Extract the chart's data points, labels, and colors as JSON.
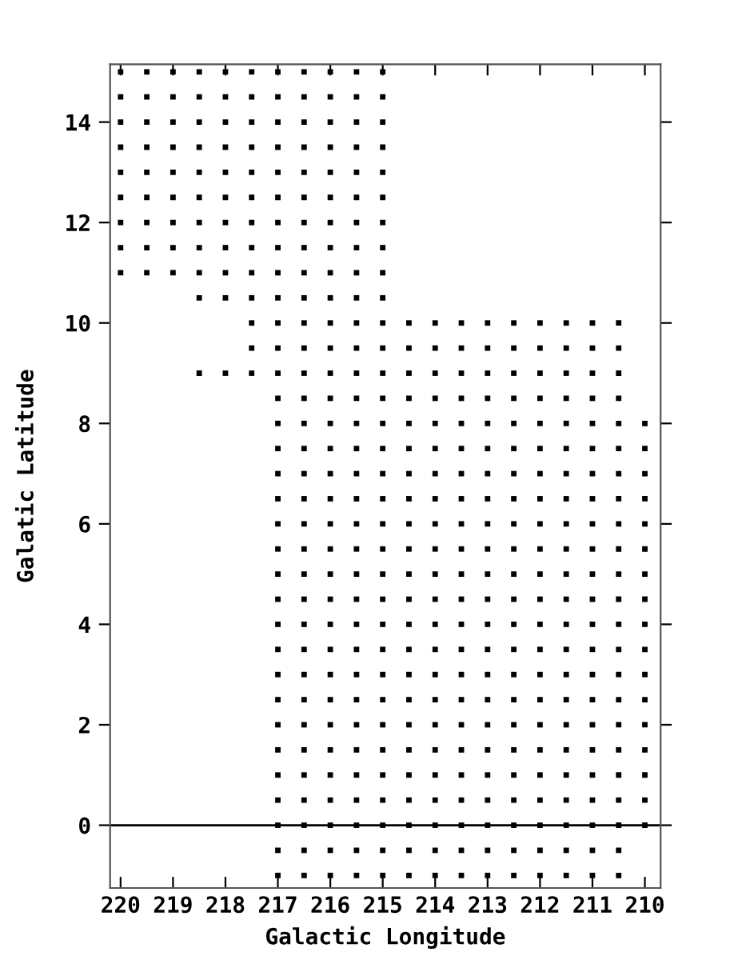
{
  "chart_data": {
    "type": "scatter",
    "xlabel": "Galactic Longitude",
    "ylabel": "Galatic Latitude",
    "xlim": [
      220.2,
      209.7
    ],
    "ylim": [
      -1.25,
      15.15
    ],
    "xticks": [
      220,
      219,
      218,
      217,
      216,
      215,
      214,
      213,
      212,
      211,
      210
    ],
    "yticks": [
      0,
      2,
      4,
      6,
      8,
      10,
      12,
      14
    ],
    "marker": "square",
    "grid": false,
    "ref_lines": [
      {
        "axis": "y",
        "value": 0,
        "color": "#000000"
      }
    ],
    "series": [
      {
        "color": "#000000",
        "x": [
          220,
          219.5,
          219,
          218.5,
          218,
          217.5,
          217,
          216.5,
          216,
          215.5,
          215
        ],
        "values": [
          15,
          15,
          15,
          15,
          15,
          15,
          15,
          15,
          15,
          15,
          15
        ]
      },
      {
        "color": "#000000",
        "x": [
          220,
          219.5,
          219,
          218.5,
          218,
          217.5,
          217,
          216.5,
          216,
          215.5,
          215
        ],
        "values": [
          14.5,
          14.5,
          14.5,
          14.5,
          14.5,
          14.5,
          14.5,
          14.5,
          14.5,
          14.5,
          14.5
        ]
      },
      {
        "color": "#000000",
        "x": [
          220,
          219.5,
          219,
          218.5,
          218,
          217.5,
          217,
          216.5,
          216,
          215.5,
          215
        ],
        "values": [
          14,
          14,
          14,
          14,
          14,
          14,
          14,
          14,
          14,
          14,
          14
        ]
      },
      {
        "color": "#000000",
        "x": [
          220,
          219.5,
          219,
          218.5,
          218,
          217.5,
          217,
          216.5,
          216,
          215.5,
          215
        ],
        "values": [
          13.5,
          13.5,
          13.5,
          13.5,
          13.5,
          13.5,
          13.5,
          13.5,
          13.5,
          13.5,
          13.5
        ]
      },
      {
        "color": "#000000",
        "x": [
          220,
          219.5,
          219,
          218.5,
          218,
          217.5,
          217,
          216.5,
          216,
          215.5,
          215
        ],
        "values": [
          13,
          13,
          13,
          13,
          13,
          13,
          13,
          13,
          13,
          13,
          13
        ]
      },
      {
        "color": "#000000",
        "x": [
          220,
          219.5,
          219,
          218.5,
          218,
          217.5,
          217,
          216.5,
          216,
          215.5,
          215
        ],
        "values": [
          12.5,
          12.5,
          12.5,
          12.5,
          12.5,
          12.5,
          12.5,
          12.5,
          12.5,
          12.5,
          12.5
        ]
      },
      {
        "color": "#000000",
        "x": [
          220,
          219.5,
          219,
          218.5,
          218,
          217.5,
          217,
          216.5,
          216,
          215.5,
          215
        ],
        "values": [
          12,
          12,
          12,
          12,
          12,
          12,
          12,
          12,
          12,
          12,
          12
        ]
      },
      {
        "color": "#000000",
        "x": [
          220,
          219.5,
          219,
          218.5,
          218,
          217.5,
          217,
          216.5,
          216,
          215.5,
          215
        ],
        "values": [
          11.5,
          11.5,
          11.5,
          11.5,
          11.5,
          11.5,
          11.5,
          11.5,
          11.5,
          11.5,
          11.5
        ]
      },
      {
        "color": "#000000",
        "x": [
          220,
          219.5,
          219,
          218.5,
          218,
          217.5,
          217,
          216.5,
          216,
          215.5,
          215
        ],
        "values": [
          11,
          11,
          11,
          11,
          11,
          11,
          11,
          11,
          11,
          11,
          11
        ]
      },
      {
        "color": "#000000",
        "x": [
          218.5,
          218,
          217.5,
          217,
          216.5,
          216,
          215.5,
          215
        ],
        "values": [
          10.5,
          10.5,
          10.5,
          10.5,
          10.5,
          10.5,
          10.5,
          10.5
        ]
      },
      {
        "color": "#000000",
        "x": [
          217.5,
          217,
          216.5,
          216,
          215.5,
          215,
          214.5,
          214,
          213.5,
          213,
          212.5,
          212,
          211.5,
          211,
          210.5
        ],
        "values": [
          10,
          10,
          10,
          10,
          10,
          10,
          10,
          10,
          10,
          10,
          10,
          10,
          10,
          10,
          10
        ]
      },
      {
        "color": "#000000",
        "x": [
          217.5,
          217,
          216.5,
          216,
          215.5,
          215,
          214.5,
          214,
          213.5,
          213,
          212.5,
          212,
          211.5,
          211,
          210.5
        ],
        "values": [
          9.5,
          9.5,
          9.5,
          9.5,
          9.5,
          9.5,
          9.5,
          9.5,
          9.5,
          9.5,
          9.5,
          9.5,
          9.5,
          9.5,
          9.5
        ]
      },
      {
        "color": "#000000",
        "x": [
          218.5,
          218,
          217.5,
          217,
          216.5,
          216,
          215.5,
          215,
          214.5,
          214,
          213.5,
          213,
          212.5,
          212,
          211.5,
          211,
          210.5
        ],
        "values": [
          9,
          9,
          9,
          9,
          9,
          9,
          9,
          9,
          9,
          9,
          9,
          9,
          9,
          9,
          9,
          9,
          9
        ]
      },
      {
        "color": "#000000",
        "x": [
          217,
          216.5,
          216,
          215.5,
          215,
          214.5,
          214,
          213.5,
          213,
          212.5,
          212,
          211.5,
          211,
          210.5
        ],
        "values": [
          8.5,
          8.5,
          8.5,
          8.5,
          8.5,
          8.5,
          8.5,
          8.5,
          8.5,
          8.5,
          8.5,
          8.5,
          8.5,
          8.5
        ]
      },
      {
        "color": "#000000",
        "x": [
          217,
          216.5,
          216,
          215.5,
          215,
          214.5,
          214,
          213.5,
          213,
          212.5,
          212,
          211.5,
          211,
          210.5,
          210
        ],
        "values": [
          8,
          8,
          8,
          8,
          8,
          8,
          8,
          8,
          8,
          8,
          8,
          8,
          8,
          8,
          8
        ]
      },
      {
        "color": "#000000",
        "x": [
          217,
          216.5,
          216,
          215.5,
          215,
          214.5,
          214,
          213.5,
          213,
          212.5,
          212,
          211.5,
          211,
          210.5,
          210
        ],
        "values": [
          7.5,
          7.5,
          7.5,
          7.5,
          7.5,
          7.5,
          7.5,
          7.5,
          7.5,
          7.5,
          7.5,
          7.5,
          7.5,
          7.5,
          7.5
        ]
      },
      {
        "color": "#000000",
        "x": [
          217,
          216.5,
          216,
          215.5,
          215,
          214.5,
          214,
          213.5,
          213,
          212.5,
          212,
          211.5,
          211,
          210.5,
          210
        ],
        "values": [
          7,
          7,
          7,
          7,
          7,
          7,
          7,
          7,
          7,
          7,
          7,
          7,
          7,
          7,
          7
        ]
      },
      {
        "color": "#000000",
        "x": [
          217,
          216.5,
          216,
          215.5,
          215,
          214.5,
          214,
          213.5,
          213,
          212.5,
          212,
          211.5,
          211,
          210.5,
          210
        ],
        "values": [
          6.5,
          6.5,
          6.5,
          6.5,
          6.5,
          6.5,
          6.5,
          6.5,
          6.5,
          6.5,
          6.5,
          6.5,
          6.5,
          6.5,
          6.5
        ]
      },
      {
        "color": "#000000",
        "x": [
          217,
          216.5,
          216,
          215.5,
          215,
          214.5,
          214,
          213.5,
          213,
          212.5,
          212,
          211.5,
          211,
          210.5,
          210
        ],
        "values": [
          6,
          6,
          6,
          6,
          6,
          6,
          6,
          6,
          6,
          6,
          6,
          6,
          6,
          6,
          6
        ]
      },
      {
        "color": "#000000",
        "x": [
          217,
          216.5,
          216,
          215.5,
          215,
          214.5,
          214,
          213.5,
          213,
          212.5,
          212,
          211.5,
          211,
          210.5,
          210
        ],
        "values": [
          5.5,
          5.5,
          5.5,
          5.5,
          5.5,
          5.5,
          5.5,
          5.5,
          5.5,
          5.5,
          5.5,
          5.5,
          5.5,
          5.5,
          5.5
        ]
      },
      {
        "color": "#000000",
        "x": [
          217,
          216.5,
          216,
          215.5,
          215,
          214.5,
          214,
          213.5,
          213,
          212.5,
          212,
          211.5,
          211,
          210.5,
          210
        ],
        "values": [
          5,
          5,
          5,
          5,
          5,
          5,
          5,
          5,
          5,
          5,
          5,
          5,
          5,
          5,
          5
        ]
      },
      {
        "color": "#000000",
        "x": [
          217,
          216.5,
          216,
          215.5,
          215,
          214.5,
          214,
          213.5,
          213,
          212.5,
          212,
          211.5,
          211,
          210.5,
          210
        ],
        "values": [
          4.5,
          4.5,
          4.5,
          4.5,
          4.5,
          4.5,
          4.5,
          4.5,
          4.5,
          4.5,
          4.5,
          4.5,
          4.5,
          4.5,
          4.5
        ]
      },
      {
        "color": "#000000",
        "x": [
          217,
          216.5,
          216,
          215.5,
          215,
          214.5,
          214,
          213.5,
          213,
          212.5,
          212,
          211.5,
          211,
          210.5,
          210
        ],
        "values": [
          4,
          4,
          4,
          4,
          4,
          4,
          4,
          4,
          4,
          4,
          4,
          4,
          4,
          4,
          4
        ]
      },
      {
        "color": "#000000",
        "x": [
          217,
          216.5,
          216,
          215.5,
          215,
          214.5,
          214,
          213.5,
          213,
          212.5,
          212,
          211.5,
          211,
          210.5,
          210
        ],
        "values": [
          3.5,
          3.5,
          3.5,
          3.5,
          3.5,
          3.5,
          3.5,
          3.5,
          3.5,
          3.5,
          3.5,
          3.5,
          3.5,
          3.5,
          3.5
        ]
      },
      {
        "color": "#000000",
        "x": [
          217,
          216.5,
          216,
          215.5,
          215,
          214.5,
          214,
          213.5,
          213,
          212.5,
          212,
          211.5,
          211,
          210.5,
          210
        ],
        "values": [
          3,
          3,
          3,
          3,
          3,
          3,
          3,
          3,
          3,
          3,
          3,
          3,
          3,
          3,
          3
        ]
      },
      {
        "color": "#000000",
        "x": [
          217,
          216.5,
          216,
          215.5,
          215,
          214.5,
          214,
          213.5,
          213,
          212.5,
          212,
          211.5,
          211,
          210.5,
          210
        ],
        "values": [
          2.5,
          2.5,
          2.5,
          2.5,
          2.5,
          2.5,
          2.5,
          2.5,
          2.5,
          2.5,
          2.5,
          2.5,
          2.5,
          2.5,
          2.5
        ]
      },
      {
        "color": "#000000",
        "x": [
          217,
          216.5,
          216,
          215.5,
          215,
          214.5,
          214,
          213.5,
          213,
          212.5,
          212,
          211.5,
          211,
          210.5,
          210
        ],
        "values": [
          2,
          2,
          2,
          2,
          2,
          2,
          2,
          2,
          2,
          2,
          2,
          2,
          2,
          2,
          2
        ]
      },
      {
        "color": "#000000",
        "x": [
          217,
          216.5,
          216,
          215.5,
          215,
          214.5,
          214,
          213.5,
          213,
          212.5,
          212,
          211.5,
          211,
          210.5,
          210
        ],
        "values": [
          1.5,
          1.5,
          1.5,
          1.5,
          1.5,
          1.5,
          1.5,
          1.5,
          1.5,
          1.5,
          1.5,
          1.5,
          1.5,
          1.5,
          1.5
        ]
      },
      {
        "color": "#000000",
        "x": [
          217,
          216.5,
          216,
          215.5,
          215,
          214.5,
          214,
          213.5,
          213,
          212.5,
          212,
          211.5,
          211,
          210.5,
          210
        ],
        "values": [
          1,
          1,
          1,
          1,
          1,
          1,
          1,
          1,
          1,
          1,
          1,
          1,
          1,
          1,
          1
        ]
      },
      {
        "color": "#000000",
        "x": [
          217,
          216.5,
          216,
          215.5,
          215,
          214.5,
          214,
          213.5,
          213,
          212.5,
          212,
          211.5,
          211,
          210.5,
          210
        ],
        "values": [
          0.5,
          0.5,
          0.5,
          0.5,
          0.5,
          0.5,
          0.5,
          0.5,
          0.5,
          0.5,
          0.5,
          0.5,
          0.5,
          0.5,
          0.5
        ]
      },
      {
        "color": "#000000",
        "x": [
          217,
          216.5,
          216,
          215.5,
          215,
          214.5,
          214,
          213.5,
          213,
          212.5,
          212,
          211.5,
          211,
          210.5,
          210
        ],
        "values": [
          0,
          0,
          0,
          0,
          0,
          0,
          0,
          0,
          0,
          0,
          0,
          0,
          0,
          0,
          0
        ]
      },
      {
        "color": "#000000",
        "x": [
          217,
          216.5,
          216,
          215.5,
          215,
          214.5,
          214,
          213.5,
          213,
          212.5,
          212,
          211.5,
          211,
          210.5
        ],
        "values": [
          -0.5,
          -0.5,
          -0.5,
          -0.5,
          -0.5,
          -0.5,
          -0.5,
          -0.5,
          -0.5,
          -0.5,
          -0.5,
          -0.5,
          -0.5,
          -0.5
        ]
      },
      {
        "color": "#000000",
        "x": [
          217,
          216.5,
          216,
          215.5,
          215,
          214.5,
          214,
          213.5,
          213,
          212.5,
          212,
          211.5,
          211,
          210.5
        ],
        "values": [
          -1,
          -1,
          -1,
          -1,
          -1,
          -1,
          -1,
          -1,
          -1,
          -1,
          -1,
          -1,
          -1,
          -1
        ]
      }
    ]
  }
}
